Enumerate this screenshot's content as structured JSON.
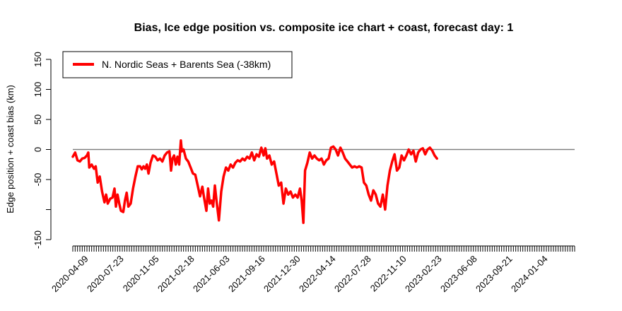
{
  "chart_data": {
    "type": "line",
    "title": "Bias, Ice edge position vs. composite ice chart + coast, forecast day: 1",
    "xlabel": "",
    "ylabel": "Edge position + coast bias (km)",
    "ylim": [
      -150,
      150
    ],
    "yticks": [
      -150,
      -100,
      -50,
      0,
      50,
      100,
      150
    ],
    "ytick_labels": [
      "-150",
      "",
      "-50",
      "0",
      "50",
      "100",
      "150"
    ],
    "xlim": [
      "2020-03-01",
      "2024-03-31"
    ],
    "xtick_labels": [
      "2020-04-09",
      "2020-07-23",
      "2020-11-05",
      "2021-02-18",
      "2021-06-03",
      "2021-09-16",
      "2021-12-30",
      "2022-04-14",
      "2022-07-28",
      "2022-11-10",
      "2023-02-23",
      "2023-06-08",
      "2023-09-21",
      "2024-01-04"
    ],
    "reference_line": 0,
    "legend_position": "top-left",
    "colors": {
      "series": "#ff0000",
      "reference": "#808080"
    },
    "series": [
      {
        "name": "N. Nordic Seas + Barents Sea (-38km)",
        "points": [
          [
            "2020-03-01",
            -12
          ],
          [
            "2020-03-08",
            -5
          ],
          [
            "2020-03-15",
            -18
          ],
          [
            "2020-03-22",
            -20
          ],
          [
            "2020-03-29",
            -15
          ],
          [
            "2020-04-05",
            -14
          ],
          [
            "2020-04-12",
            -10
          ],
          [
            "2020-04-16",
            -5
          ],
          [
            "2020-04-19",
            -30
          ],
          [
            "2020-04-26",
            -25
          ],
          [
            "2020-05-03",
            -32
          ],
          [
            "2020-05-08",
            -28
          ],
          [
            "2020-05-14",
            -55
          ],
          [
            "2020-05-20",
            -45
          ],
          [
            "2020-05-27",
            -70
          ],
          [
            "2020-06-03",
            -88
          ],
          [
            "2020-06-08",
            -75
          ],
          [
            "2020-06-13",
            -90
          ],
          [
            "2020-06-20",
            -82
          ],
          [
            "2020-06-27",
            -80
          ],
          [
            "2020-07-03",
            -65
          ],
          [
            "2020-07-07",
            -95
          ],
          [
            "2020-07-12",
            -75
          ],
          [
            "2020-07-17",
            -90
          ],
          [
            "2020-07-22",
            -102
          ],
          [
            "2020-07-29",
            -104
          ],
          [
            "2020-08-03",
            -85
          ],
          [
            "2020-08-08",
            -72
          ],
          [
            "2020-08-13",
            -95
          ],
          [
            "2020-08-20",
            -90
          ],
          [
            "2020-08-27",
            -65
          ],
          [
            "2020-09-03",
            -45
          ],
          [
            "2020-09-10",
            -28
          ],
          [
            "2020-09-17",
            -28
          ],
          [
            "2020-09-22",
            -33
          ],
          [
            "2020-09-27",
            -28
          ],
          [
            "2020-10-02",
            -32
          ],
          [
            "2020-10-07",
            -25
          ],
          [
            "2020-10-12",
            -40
          ],
          [
            "2020-10-18",
            -22
          ],
          [
            "2020-10-25",
            -10
          ],
          [
            "2020-11-01",
            -12
          ],
          [
            "2020-11-08",
            -18
          ],
          [
            "2020-11-15",
            -15
          ],
          [
            "2020-11-22",
            -20
          ],
          [
            "2020-11-29",
            -10
          ],
          [
            "2020-12-06",
            -5
          ],
          [
            "2020-12-13",
            -3
          ],
          [
            "2020-12-18",
            -35
          ],
          [
            "2020-12-22",
            -15
          ],
          [
            "2020-12-27",
            -10
          ],
          [
            "2021-01-01",
            -25
          ],
          [
            "2021-01-06",
            -12
          ],
          [
            "2021-01-11",
            -25
          ],
          [
            "2021-01-16",
            15
          ],
          [
            "2021-01-19",
            -3
          ],
          [
            "2021-01-24",
            0
          ],
          [
            "2021-01-31",
            -15
          ],
          [
            "2021-02-07",
            -20
          ],
          [
            "2021-02-14",
            -30
          ],
          [
            "2021-02-21",
            -40
          ],
          [
            "2021-02-28",
            -42
          ],
          [
            "2021-03-07",
            -60
          ],
          [
            "2021-03-14",
            -78
          ],
          [
            "2021-03-21",
            -62
          ],
          [
            "2021-03-26",
            -80
          ],
          [
            "2021-04-02",
            -102
          ],
          [
            "2021-04-07",
            -65
          ],
          [
            "2021-04-12",
            -90
          ],
          [
            "2021-04-17",
            -85
          ],
          [
            "2021-04-22",
            -95
          ],
          [
            "2021-04-27",
            -60
          ],
          [
            "2021-05-02",
            -85
          ],
          [
            "2021-05-09",
            -118
          ],
          [
            "2021-05-16",
            -70
          ],
          [
            "2021-05-23",
            -45
          ],
          [
            "2021-05-30",
            -30
          ],
          [
            "2021-06-06",
            -35
          ],
          [
            "2021-06-13",
            -25
          ],
          [
            "2021-06-20",
            -30
          ],
          [
            "2021-06-27",
            -22
          ],
          [
            "2021-07-04",
            -18
          ],
          [
            "2021-07-11",
            -20
          ],
          [
            "2021-07-18",
            -15
          ],
          [
            "2021-07-25",
            -18
          ],
          [
            "2021-08-01",
            -12
          ],
          [
            "2021-08-08",
            -15
          ],
          [
            "2021-08-15",
            -5
          ],
          [
            "2021-08-22",
            -18
          ],
          [
            "2021-08-29",
            -8
          ],
          [
            "2021-09-05",
            -12
          ],
          [
            "2021-09-12",
            3
          ],
          [
            "2021-09-19",
            -10
          ],
          [
            "2021-09-24",
            2
          ],
          [
            "2021-09-29",
            -15
          ],
          [
            "2021-10-06",
            -10
          ],
          [
            "2021-10-13",
            -25
          ],
          [
            "2021-10-20",
            -20
          ],
          [
            "2021-10-27",
            -40
          ],
          [
            "2021-11-03",
            -60
          ],
          [
            "2021-11-10",
            -55
          ],
          [
            "2021-11-17",
            -90
          ],
          [
            "2021-11-24",
            -65
          ],
          [
            "2021-12-01",
            -75
          ],
          [
            "2021-12-08",
            -70
          ],
          [
            "2021-12-15",
            -80
          ],
          [
            "2021-12-22",
            -75
          ],
          [
            "2021-12-29",
            -80
          ],
          [
            "2022-01-05",
            -65
          ],
          [
            "2022-01-10",
            -85
          ],
          [
            "2022-01-15",
            -122
          ],
          [
            "2022-01-20",
            -35
          ],
          [
            "2022-01-27",
            -22
          ],
          [
            "2022-02-03",
            -5
          ],
          [
            "2022-02-10",
            -15
          ],
          [
            "2022-02-17",
            -10
          ],
          [
            "2022-02-24",
            -15
          ],
          [
            "2022-03-03",
            -18
          ],
          [
            "2022-03-10",
            -15
          ],
          [
            "2022-03-17",
            -25
          ],
          [
            "2022-03-24",
            -18
          ],
          [
            "2022-03-31",
            -15
          ],
          [
            "2022-04-07",
            3
          ],
          [
            "2022-04-14",
            5
          ],
          [
            "2022-04-21",
            0
          ],
          [
            "2022-04-28",
            -10
          ],
          [
            "2022-05-05",
            3
          ],
          [
            "2022-05-12",
            -5
          ],
          [
            "2022-05-19",
            -15
          ],
          [
            "2022-05-26",
            -20
          ],
          [
            "2022-06-02",
            -25
          ],
          [
            "2022-06-09",
            -30
          ],
          [
            "2022-06-16",
            -28
          ],
          [
            "2022-06-23",
            -30
          ],
          [
            "2022-06-30",
            -28
          ],
          [
            "2022-07-07",
            -30
          ],
          [
            "2022-07-14",
            -55
          ],
          [
            "2022-07-21",
            -60
          ],
          [
            "2022-07-28",
            -75
          ],
          [
            "2022-08-04",
            -85
          ],
          [
            "2022-08-11",
            -68
          ],
          [
            "2022-08-18",
            -75
          ],
          [
            "2022-08-25",
            -90
          ],
          [
            "2022-09-01",
            -95
          ],
          [
            "2022-09-08",
            -75
          ],
          [
            "2022-09-15",
            -100
          ],
          [
            "2022-09-22",
            -60
          ],
          [
            "2022-09-29",
            -35
          ],
          [
            "2022-10-06",
            -20
          ],
          [
            "2022-10-13",
            -8
          ],
          [
            "2022-10-20",
            -35
          ],
          [
            "2022-10-27",
            -30
          ],
          [
            "2022-11-03",
            -10
          ],
          [
            "2022-11-10",
            -18
          ],
          [
            "2022-11-17",
            -10
          ],
          [
            "2022-11-24",
            0
          ],
          [
            "2022-12-01",
            -8
          ],
          [
            "2022-12-08",
            -2
          ],
          [
            "2022-12-15",
            -20
          ],
          [
            "2022-12-22",
            -5
          ],
          [
            "2022-12-29",
            0
          ],
          [
            "2023-01-05",
            2
          ],
          [
            "2023-01-12",
            -8
          ],
          [
            "2023-01-19",
            0
          ],
          [
            "2023-01-26",
            3
          ],
          [
            "2023-02-02",
            -2
          ],
          [
            "2023-02-09",
            -10
          ],
          [
            "2023-02-16",
            -15
          ]
        ]
      }
    ]
  }
}
